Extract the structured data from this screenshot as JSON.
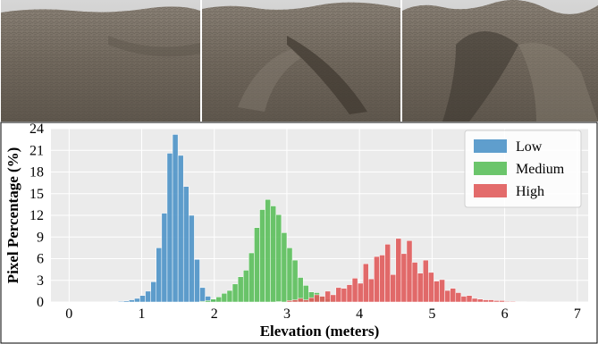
{
  "panels": [
    {
      "name": "Low",
      "sky": "#c9c9c9",
      "ground": "#7a7166"
    },
    {
      "name": "Medium",
      "sky": "#cfcfcf",
      "ground": "#6f665c"
    },
    {
      "name": "High",
      "sky": "#c4c4c4",
      "ground": "#6a6258"
    }
  ],
  "chart_data": {
    "type": "bar",
    "xlabel": "Elevation (meters)",
    "ylabel": "Pixel Percentage (%)",
    "xlim": [
      -0.25,
      7.15
    ],
    "ylim": [
      0,
      24
    ],
    "xticks": [
      0,
      1,
      2,
      3,
      4,
      5,
      6,
      7
    ],
    "yticks": [
      0,
      3,
      6,
      9,
      12,
      15,
      18,
      21,
      24
    ],
    "grid": true,
    "legend_position": "top-right",
    "bin_width": 0.075,
    "series": [
      {
        "name": "Low",
        "color": "#4e94c8",
        "bins": [
          [
            0.6,
            0.05
          ],
          [
            0.675,
            0.1
          ],
          [
            0.75,
            0.15
          ],
          [
            0.825,
            0.3
          ],
          [
            0.9,
            0.5
          ],
          [
            0.975,
            0.9
          ],
          [
            1.05,
            1.5
          ],
          [
            1.125,
            2.8
          ],
          [
            1.2,
            7.5
          ],
          [
            1.275,
            12.3
          ],
          [
            1.35,
            20.6
          ],
          [
            1.425,
            23.2
          ],
          [
            1.5,
            20.3
          ],
          [
            1.575,
            16.0
          ],
          [
            1.65,
            12.0
          ],
          [
            1.725,
            5.9
          ],
          [
            1.8,
            2.0
          ],
          [
            1.875,
            0.8
          ],
          [
            1.95,
            0.3
          ],
          [
            2.025,
            0.1
          ]
        ]
      },
      {
        "name": "Medium",
        "color": "#5bbf5b",
        "bins": [
          [
            1.8,
            0.1
          ],
          [
            1.875,
            0.2
          ],
          [
            1.95,
            0.4
          ],
          [
            2.025,
            0.7
          ],
          [
            2.1,
            1.2
          ],
          [
            2.175,
            1.6
          ],
          [
            2.25,
            2.5
          ],
          [
            2.325,
            3.5
          ],
          [
            2.4,
            4.4
          ],
          [
            2.475,
            6.8
          ],
          [
            2.55,
            10.3
          ],
          [
            2.625,
            12.8
          ],
          [
            2.7,
            14.2
          ],
          [
            2.775,
            13.3
          ],
          [
            2.85,
            12.1
          ],
          [
            2.925,
            9.6
          ],
          [
            3.0,
            7.5
          ],
          [
            3.075,
            5.8
          ],
          [
            3.15,
            3.4
          ],
          [
            3.225,
            2.3
          ],
          [
            3.3,
            1.4
          ],
          [
            3.375,
            1.3
          ],
          [
            3.45,
            0.8
          ],
          [
            3.525,
            0.4
          ],
          [
            3.6,
            0.2
          ]
        ]
      },
      {
        "name": "High",
        "color": "#e05b5b",
        "bins": [
          [
            2.85,
            0.05
          ],
          [
            3.0,
            0.2
          ],
          [
            3.075,
            0.3
          ],
          [
            3.15,
            0.5
          ],
          [
            3.225,
            0.3
          ],
          [
            3.3,
            0.6
          ],
          [
            3.375,
            1.0
          ],
          [
            3.45,
            0.8
          ],
          [
            3.525,
            1.5
          ],
          [
            3.6,
            1.0
          ],
          [
            3.675,
            2.0
          ],
          [
            3.75,
            1.9
          ],
          [
            3.825,
            2.4
          ],
          [
            3.9,
            3.3
          ],
          [
            3.975,
            2.6
          ],
          [
            4.05,
            5.3
          ],
          [
            4.125,
            3.2
          ],
          [
            4.2,
            6.3
          ],
          [
            4.275,
            6.5
          ],
          [
            4.35,
            8.0
          ],
          [
            4.425,
            3.8
          ],
          [
            4.5,
            8.8
          ],
          [
            4.575,
            6.7
          ],
          [
            4.65,
            8.5
          ],
          [
            4.725,
            5.5
          ],
          [
            4.8,
            4.0
          ],
          [
            4.875,
            5.8
          ],
          [
            4.95,
            4.1
          ],
          [
            5.025,
            2.9
          ],
          [
            5.1,
            3.1
          ],
          [
            5.175,
            1.6
          ],
          [
            5.25,
            1.9
          ],
          [
            5.325,
            1.3
          ],
          [
            5.4,
            0.8
          ],
          [
            5.475,
            0.9
          ],
          [
            5.55,
            0.5
          ],
          [
            5.625,
            0.4
          ],
          [
            5.7,
            0.3
          ],
          [
            5.775,
            0.3
          ],
          [
            5.85,
            0.2
          ],
          [
            5.925,
            0.2
          ],
          [
            6.0,
            0.1
          ],
          [
            6.075,
            0.1
          ],
          [
            6.15,
            0.05
          ],
          [
            6.225,
            0.05
          ]
        ]
      }
    ]
  }
}
